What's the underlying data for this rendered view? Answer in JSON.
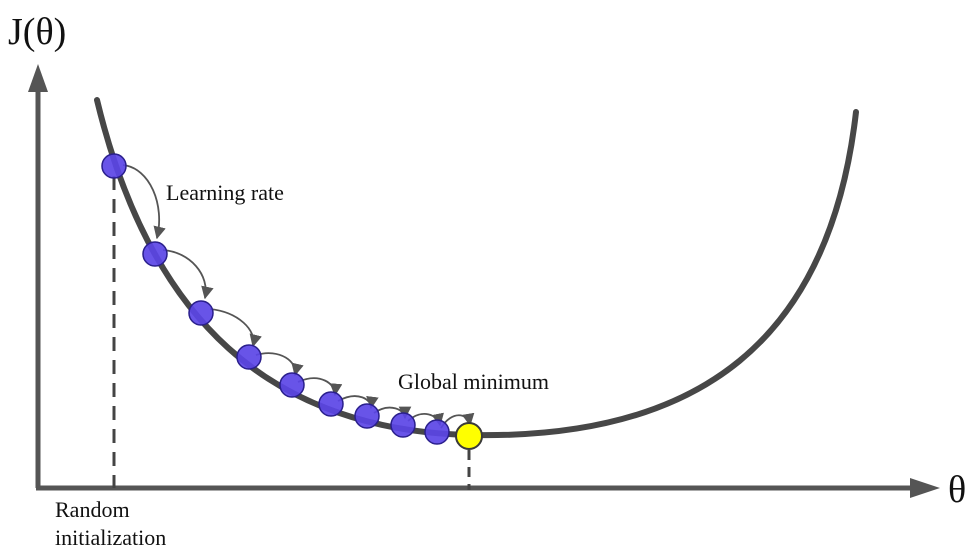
{
  "labels": {
    "y_axis": "J(θ)",
    "x_axis": "θ",
    "learning_rate": "Learning rate",
    "global_minimum": "Global minimum",
    "random_init_line1": "Random",
    "random_init_line2": "initialization"
  },
  "colors": {
    "axis": "#555555",
    "curve": "#474747",
    "step_point": "#5b45e6",
    "step_point_stroke": "#2a1f8c",
    "minimum_point": "#ffff00",
    "minimum_point_stroke": "#3a3a3a",
    "arrow": "#555555",
    "dashed_line": "#444444"
  }
}
